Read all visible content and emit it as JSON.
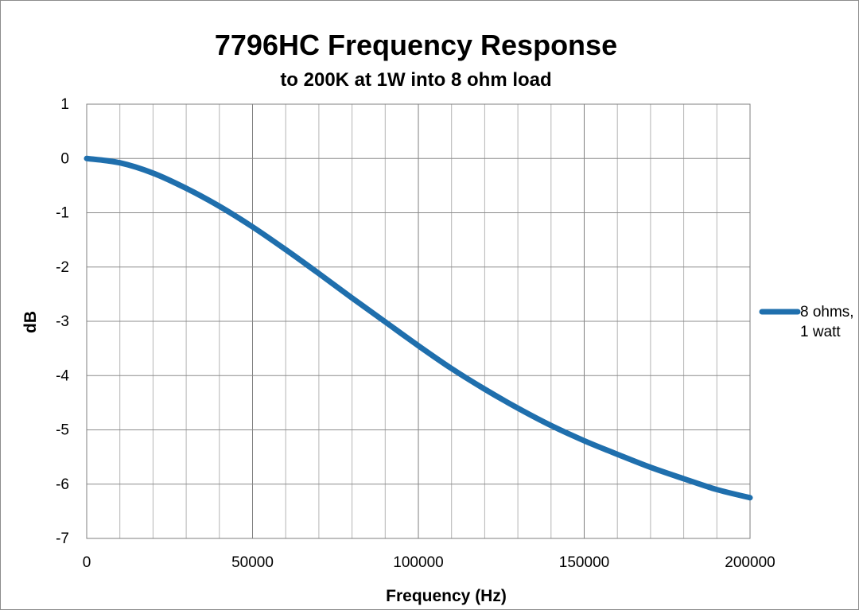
{
  "chart_data": {
    "type": "line",
    "title": "7796HC Frequency Response",
    "subtitle": "to 200K at 1W into 8 ohm load",
    "xlabel": "Frequency (Hz)",
    "ylabel": "dB",
    "xlim": [
      0,
      200000
    ],
    "ylim": [
      -7,
      1
    ],
    "x_ticks": [
      0,
      50000,
      100000,
      150000,
      200000
    ],
    "y_ticks": [
      1,
      0,
      -1,
      -2,
      -3,
      -4,
      -5,
      -6,
      -7
    ],
    "x_minor_step": 10000,
    "grid": true,
    "legend_position": "right",
    "series": [
      {
        "name": "8 ohms,\n1 watt",
        "color": "#1f6fad",
        "x": [
          0,
          10000,
          20000,
          30000,
          40000,
          50000,
          60000,
          70000,
          80000,
          90000,
          100000,
          110000,
          120000,
          130000,
          140000,
          150000,
          160000,
          170000,
          180000,
          190000,
          200000
        ],
        "y": [
          0,
          -0.08,
          -0.27,
          -0.55,
          -0.88,
          -1.26,
          -1.68,
          -2.12,
          -2.57,
          -3.01,
          -3.45,
          -3.87,
          -4.25,
          -4.6,
          -4.92,
          -5.2,
          -5.45,
          -5.69,
          -5.9,
          -6.1,
          -6.25
        ]
      }
    ]
  }
}
